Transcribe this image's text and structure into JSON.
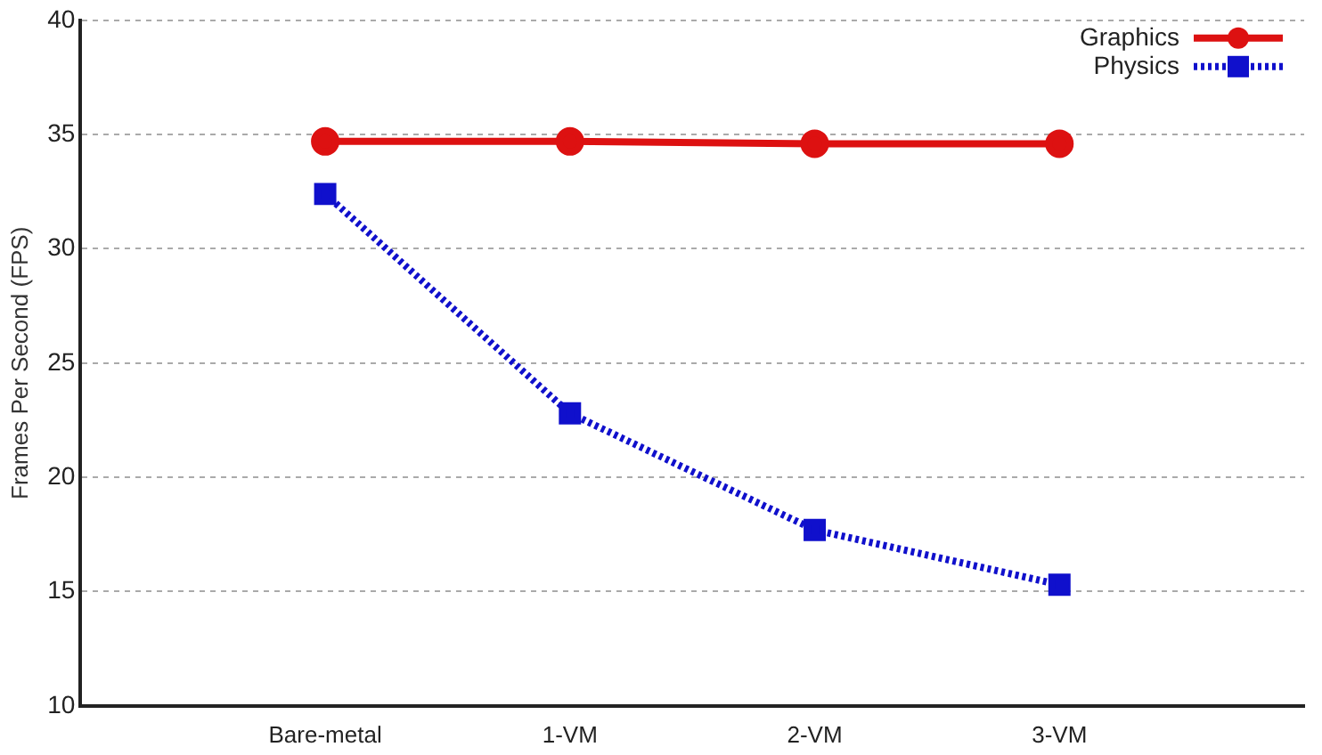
{
  "chart_data": {
    "type": "line",
    "ylabel": "Frames Per Second (FPS)",
    "categories": [
      "Bare-metal",
      "1-VM",
      "2-VM",
      "3-VM"
    ],
    "series": [
      {
        "name": "Graphics",
        "color": "#dd1111",
        "values": [
          34.7,
          34.7,
          34.6,
          34.6
        ],
        "marker": "circle",
        "line_style": "solid"
      },
      {
        "name": "Physics",
        "color": "#1010cc",
        "values": [
          32.4,
          22.8,
          17.7,
          15.3
        ],
        "marker": "square",
        "line_style": "dotted"
      }
    ],
    "ylim": [
      10,
      40
    ],
    "yticks": [
      10,
      15,
      20,
      25,
      30,
      35,
      40
    ],
    "grid": "y",
    "legend": "top right"
  }
}
